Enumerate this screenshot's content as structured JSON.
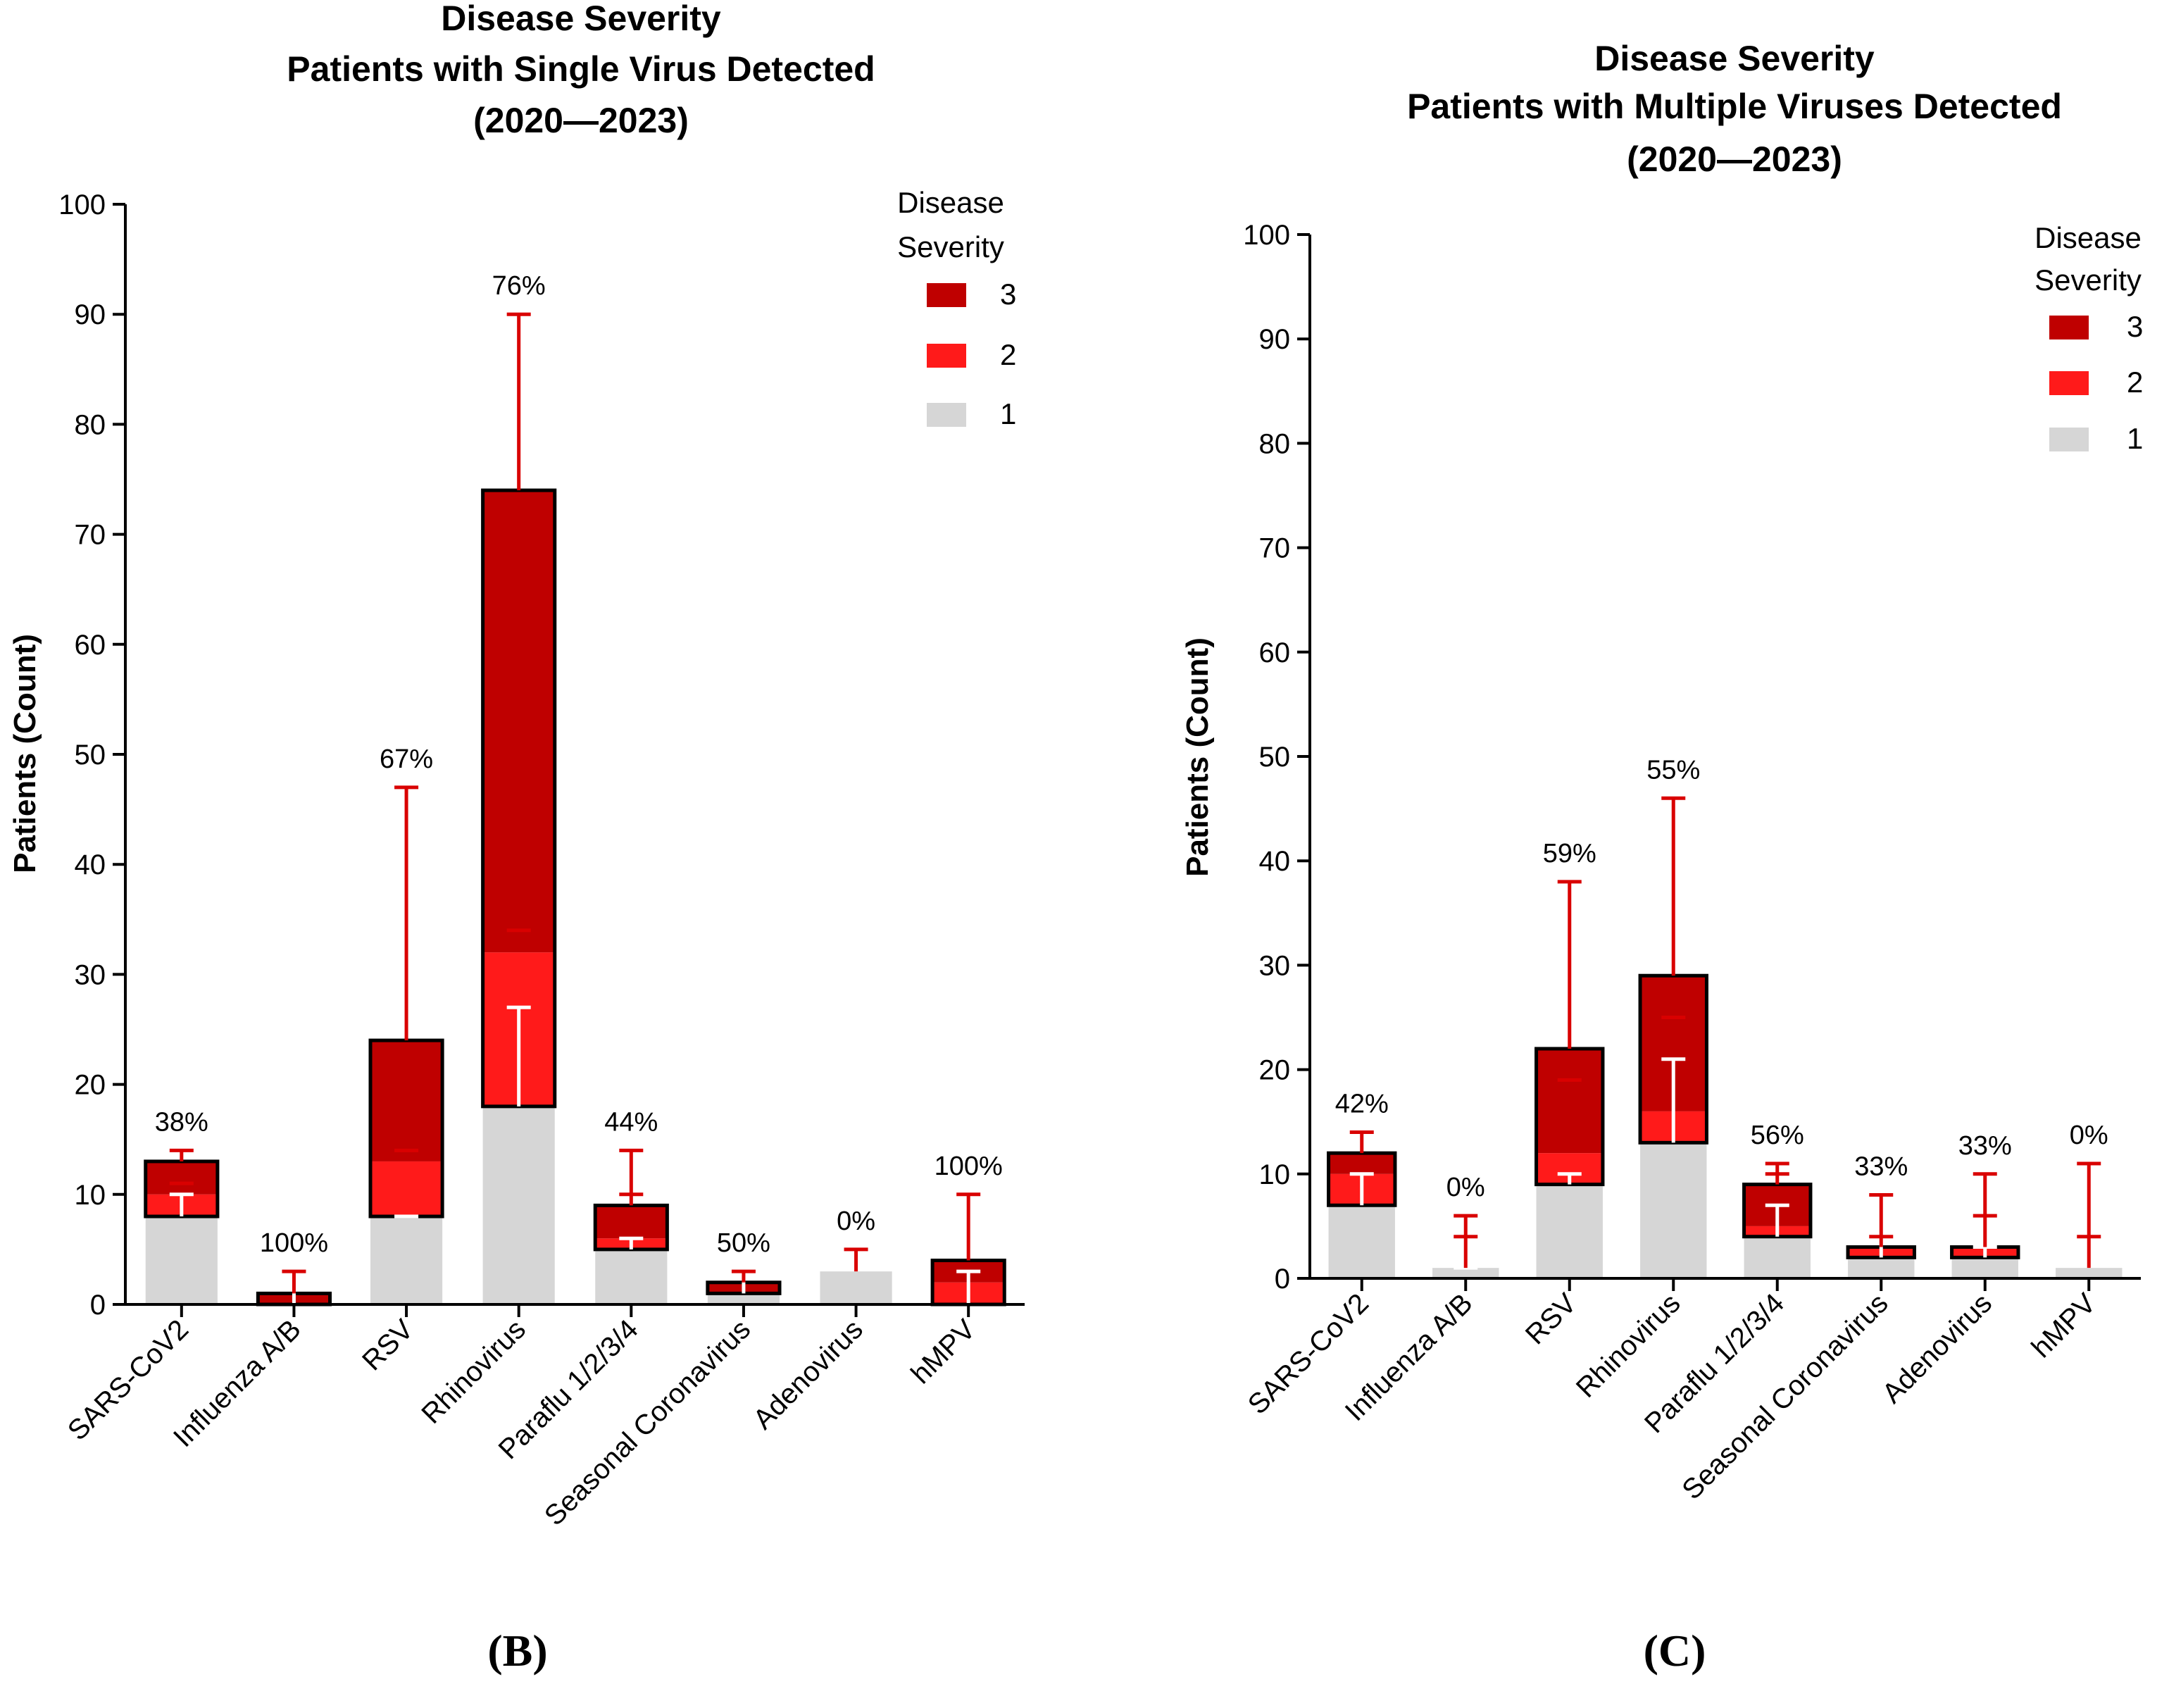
{
  "colors": {
    "severity_3": "#BF0000",
    "severity_2": "#FF1A1A",
    "severity_1": "#D6D6D6",
    "error_bar_red": "#D90000",
    "error_bar_white": "#FFFFFF",
    "axis": "#000000"
  },
  "chart_data": [
    {
      "type": "bar",
      "stacked": true,
      "panel_label": "(B)",
      "title_lines": [
        "Disease Severity",
        "Patients with Single Virus Detected",
        "(2020—2023)"
      ],
      "xlabel": "",
      "ylabel": "Patients  (Count)",
      "ylim": [
        0,
        100
      ],
      "yticks": [
        "0",
        "10",
        "20",
        "30",
        "40",
        "50",
        "60",
        "70",
        "80",
        "90",
        "100"
      ],
      "grid": false,
      "legend": {
        "title_lines": [
          "Disease",
          "Severity"
        ],
        "position": "top-right",
        "entries": [
          "3",
          "2",
          "1"
        ]
      },
      "categories": [
        "SARS-CoV2",
        "Influenza A/B",
        "RSV",
        "Rhinovirus",
        "Paraflu 1/2/3/4",
        "Seasonal Coronavirus",
        "Adenovirus",
        "hMPV"
      ],
      "series": [
        {
          "name": "1",
          "values": [
            8,
            0,
            8,
            18,
            5,
            1,
            3,
            0
          ]
        },
        {
          "name": "2",
          "values": [
            2,
            0,
            5,
            14,
            1,
            0,
            0,
            2
          ]
        },
        {
          "name": "3",
          "values": [
            3,
            1,
            11,
            42,
            3,
            1,
            0,
            2
          ]
        }
      ],
      "totals": [
        13,
        1,
        24,
        74,
        9,
        2,
        3,
        4
      ],
      "bar_labels": [
        "38%",
        "100%",
        "67%",
        "76%",
        "44%",
        "50%",
        "0%",
        "100%"
      ],
      "error_top_red": [
        14,
        3,
        47,
        90,
        14,
        3,
        5,
        10
      ],
      "error_mid_red": [
        11,
        null,
        14,
        34,
        10,
        null,
        null,
        null
      ],
      "error_top_white": [
        10,
        2,
        8,
        27,
        6,
        4,
        7,
        3
      ]
    },
    {
      "type": "bar",
      "stacked": true,
      "panel_label": "(C)",
      "title_lines": [
        "Disease Severity",
        "Patients with Multiple Viruses  Detected",
        "(2020—2023)"
      ],
      "xlabel": "",
      "ylabel": "Patients  (Count)",
      "ylim": [
        0,
        100
      ],
      "yticks": [
        "0",
        "10",
        "20",
        "30",
        "40",
        "50",
        "60",
        "70",
        "80",
        "90",
        "100"
      ],
      "grid": false,
      "legend": {
        "title_lines": [
          "Disease",
          "Severity"
        ],
        "position": "top-right",
        "entries": [
          "3",
          "2",
          "1"
        ]
      },
      "categories": [
        "SARS-CoV2",
        "Influenza A/B",
        "RSV",
        "Rhinovirus",
        "Paraflu 1/2/3/4",
        "Seasonal Coronavirus",
        "Adenovirus",
        "hMPV"
      ],
      "series": [
        {
          "name": "1",
          "values": [
            7,
            1,
            9,
            13,
            4,
            2,
            2,
            1
          ]
        },
        {
          "name": "2",
          "values": [
            3,
            0,
            3,
            3,
            1,
            1,
            1,
            0
          ]
        },
        {
          "name": "3",
          "values": [
            2,
            0,
            10,
            13,
            4,
            0,
            0,
            0
          ]
        }
      ],
      "totals": [
        12,
        1,
        22,
        29,
        9,
        3,
        3,
        1
      ],
      "bar_labels": [
        "42%",
        "0%",
        "59%",
        "55%",
        "56%",
        "33%",
        "33%",
        "0%"
      ],
      "error_top_red": [
        14,
        6,
        38,
        46,
        11,
        8,
        10,
        11
      ],
      "error_mid_red": [
        null,
        4,
        19,
        25,
        10,
        4,
        6,
        4
      ],
      "error_top_white": [
        10,
        1,
        10,
        21,
        7,
        6,
        3,
        3
      ]
    }
  ]
}
